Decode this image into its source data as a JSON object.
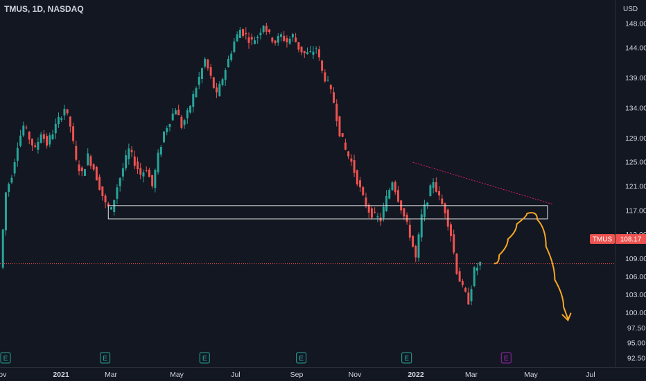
{
  "header": {
    "symbol_title": "TMUS, 1D, NASDAQ",
    "currency": "USD"
  },
  "price_tag": {
    "label": "TMUS",
    "value": "108.17"
  },
  "colors": {
    "background": "#131722",
    "up": "#26a69a",
    "down": "#ef5350",
    "axis_text": "#d1d4dc",
    "orange_path": "#f7a823",
    "trendline": "#e91e63",
    "earnings_past": "#26a69a",
    "earnings_future": "#9c27b0"
  },
  "chart_data": {
    "type": "candlestick",
    "ylim": [
      91,
      151
    ],
    "x_axis_labels": [
      "Nov",
      "2021",
      "Mar",
      "May",
      "Jul",
      "Sep",
      "Nov",
      "2022",
      "Mar",
      "May",
      "Jul"
    ],
    "y_tick_labels": [
      "148.00",
      "144.00",
      "139.00",
      "134.00",
      "129.00",
      "125.00",
      "121.00",
      "117.00",
      "113.00",
      "109.00",
      "106.00",
      "103.00",
      "100.00",
      "97.50",
      "95.00",
      "92.50"
    ],
    "last_price": 108.17,
    "price_path": [
      [
        0,
        107.5
      ],
      [
        2,
        120
      ],
      [
        4,
        123
      ],
      [
        6,
        128
      ],
      [
        8,
        131
      ],
      [
        10,
        129
      ],
      [
        12,
        127
      ],
      [
        14,
        130
      ],
      [
        16,
        128
      ],
      [
        18,
        130
      ],
      [
        20,
        132
      ],
      [
        22,
        134
      ],
      [
        24,
        131
      ],
      [
        26,
        125
      ],
      [
        28,
        123
      ],
      [
        30,
        126
      ],
      [
        32,
        124
      ],
      [
        34,
        121
      ],
      [
        36,
        118
      ],
      [
        38,
        117
      ],
      [
        40,
        121
      ],
      [
        42,
        124
      ],
      [
        44,
        127
      ],
      [
        46,
        125
      ],
      [
        48,
        123
      ],
      [
        50,
        124
      ],
      [
        52,
        121
      ],
      [
        54,
        126
      ],
      [
        56,
        130
      ],
      [
        58,
        132
      ],
      [
        60,
        134
      ],
      [
        62,
        131
      ],
      [
        64,
        133
      ],
      [
        66,
        136
      ],
      [
        68,
        139
      ],
      [
        70,
        142
      ],
      [
        72,
        139
      ],
      [
        74,
        136
      ],
      [
        76,
        139
      ],
      [
        78,
        142
      ],
      [
        80,
        145
      ],
      [
        82,
        147
      ],
      [
        84,
        146
      ],
      [
        86,
        145
      ],
      [
        88,
        146
      ],
      [
        90,
        148
      ],
      [
        92,
        146
      ],
      [
        94,
        145
      ],
      [
        96,
        146
      ],
      [
        98,
        145
      ],
      [
        100,
        146
      ],
      [
        102,
        144
      ],
      [
        104,
        143
      ],
      [
        106,
        143
      ],
      [
        108,
        144
      ],
      [
        110,
        140
      ],
      [
        112,
        138
      ],
      [
        114,
        135
      ],
      [
        116,
        130
      ],
      [
        118,
        127
      ],
      [
        120,
        125
      ],
      [
        122,
        122
      ],
      [
        124,
        119
      ],
      [
        126,
        117
      ],
      [
        128,
        116
      ],
      [
        130,
        115.5
      ],
      [
        132,
        119
      ],
      [
        134,
        122
      ],
      [
        136,
        119
      ],
      [
        138,
        116
      ],
      [
        140,
        113
      ],
      [
        142,
        109
      ],
      [
        144,
        116
      ],
      [
        146,
        119
      ],
      [
        148,
        122
      ],
      [
        150,
        119
      ],
      [
        152,
        117
      ],
      [
        154,
        113
      ],
      [
        156,
        107
      ],
      [
        158,
        104
      ],
      [
        160,
        102
      ],
      [
        162,
        107
      ],
      [
        164,
        108.2
      ]
    ],
    "support_zone": {
      "low": 115.6,
      "high": 117.8
    },
    "trendline": {
      "start": [
        141,
        125
      ],
      "end": [
        189,
        118
      ]
    },
    "projection_path": [
      [
        169,
        108.2
      ],
      [
        172,
        111
      ],
      [
        175,
        113.5
      ],
      [
        178,
        116
      ],
      [
        182,
        117
      ],
      [
        185,
        114
      ],
      [
        188,
        108
      ],
      [
        191,
        103
      ],
      [
        194,
        99
      ]
    ],
    "earnings_markers": [
      {
        "idx": 0,
        "label": "E",
        "kind": "past"
      },
      {
        "idx": 34,
        "label": "E",
        "kind": "past"
      },
      {
        "idx": 68,
        "label": "E",
        "kind": "past"
      },
      {
        "idx": 101,
        "label": "E",
        "kind": "past"
      },
      {
        "idx": 137,
        "label": "E",
        "kind": "past"
      },
      {
        "idx": 171,
        "label": "E",
        "kind": "future"
      }
    ]
  }
}
